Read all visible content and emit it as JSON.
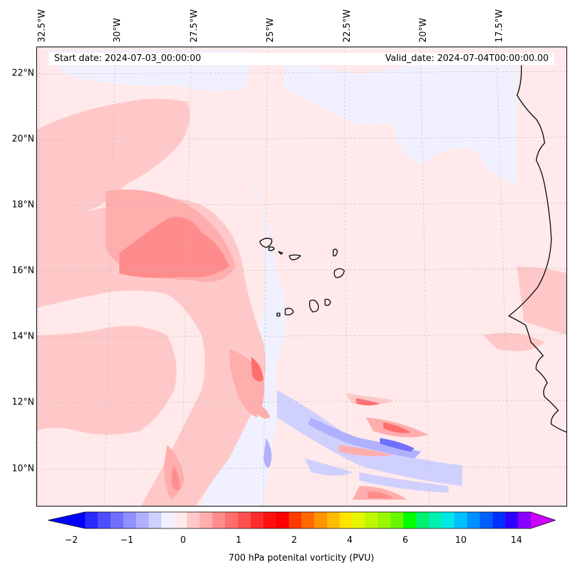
{
  "map": {
    "start_date": "Start date: 2024-07-03_00:00:00",
    "valid_date": "Valid_date: 2024-07-04T00:00:00.00",
    "longitude_labels": [
      "32.5°W",
      "30°W",
      "27.5°W",
      "25°W",
      "22.5°W",
      "20°W",
      "17.5°W"
    ],
    "latitude_labels": [
      "22°N",
      "20°N",
      "18°N",
      "16°N",
      "14°N",
      "12°N",
      "10°N"
    ],
    "variable": "700 hPa potenital vorticity (PVU)"
  },
  "colorbar": {
    "tick_labels": [
      "−2",
      "−1",
      "0",
      "1",
      "2",
      "4",
      "6",
      "10",
      "14"
    ],
    "colors": [
      "#0000ff",
      "#2a2aff",
      "#4e4eff",
      "#7070ff",
      "#9090ff",
      "#b0b0ff",
      "#d0d0ff",
      "#f0f0ff",
      "#ffe9ea",
      "#ffc8c8",
      "#ffadad",
      "#ff8c8c",
      "#ff6e6e",
      "#ff5050",
      "#ff2e2e",
      "#ff1010",
      "#ff0000",
      "#ff3a00",
      "#ff6a00",
      "#ff9400",
      "#ffbc00",
      "#ffe400",
      "#e4f700",
      "#c0f700",
      "#9af700",
      "#66f700",
      "#00ff00",
      "#00f070",
      "#00f0b0",
      "#00e8e8",
      "#00c0ff",
      "#0090ff",
      "#0060ff",
      "#0030ff",
      "#3000ff",
      "#8a00ff",
      "#cc00ff"
    ]
  }
}
